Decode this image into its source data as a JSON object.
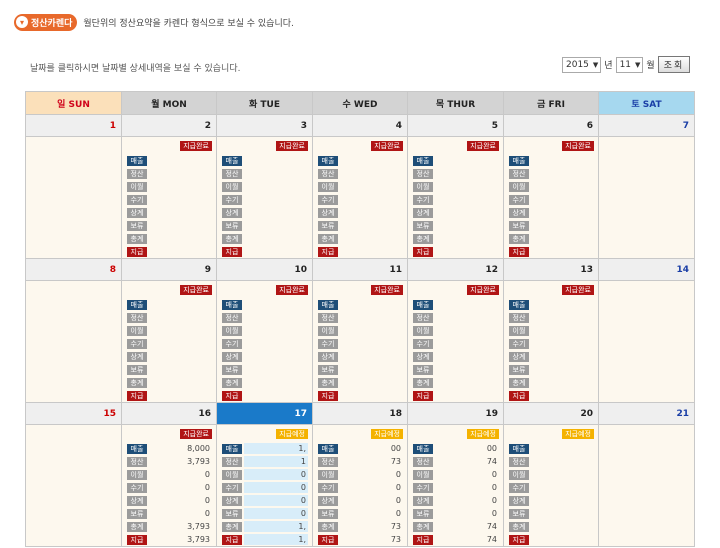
{
  "header": {
    "badge": "정산카렌다",
    "description": "월단위의 정산요약을 카렌다 형식으로 보실 수 있습니다."
  },
  "hint": "날짜를 클릭하시면 날짜별 상세내역을 보실 수 있습니다.",
  "controls": {
    "year": "2015",
    "year_unit": "년",
    "month": "11",
    "month_unit": "월",
    "search_label": "조회"
  },
  "weekdays": [
    "일 SUN",
    "월 MON",
    "화 TUE",
    "수 WED",
    "목 THUR",
    "금 FRI",
    "토 SAT"
  ],
  "labels": [
    "매출",
    "정산",
    "이월",
    "수기",
    "상계",
    "보류",
    "총계",
    "지급"
  ],
  "weeks": [
    {
      "days": [
        "1",
        "2",
        "3",
        "4",
        "5",
        "6",
        "7"
      ],
      "cells": [
        null,
        {
          "status": "지급완료",
          "kind": "done",
          "values": [
            "",
            "",
            "",
            "",
            "",
            "",
            "",
            ""
          ]
        },
        {
          "status": "지급완료",
          "kind": "done",
          "values": [
            "",
            "",
            "",
            "",
            "",
            "",
            "",
            ""
          ]
        },
        {
          "status": "지급완료",
          "kind": "done",
          "values": [
            "",
            "",
            "",
            "",
            "",
            "",
            "",
            ""
          ]
        },
        {
          "status": "지급완료",
          "kind": "done",
          "values": [
            "",
            "",
            "",
            "",
            "",
            "",
            "",
            ""
          ]
        },
        {
          "status": "지급완료",
          "kind": "done",
          "values": [
            "",
            "",
            "",
            "",
            "",
            "",
            "",
            ""
          ]
        },
        null
      ]
    },
    {
      "days": [
        "8",
        "9",
        "10",
        "11",
        "12",
        "13",
        "14"
      ],
      "cells": [
        null,
        {
          "status": "지급완료",
          "kind": "done",
          "values": [
            "",
            "",
            "",
            "",
            "",
            "",
            "",
            ""
          ]
        },
        {
          "status": "지급완료",
          "kind": "done",
          "values": [
            "",
            "",
            "",
            "",
            "",
            "",
            "",
            ""
          ]
        },
        {
          "status": "지급완료",
          "kind": "done",
          "values": [
            "",
            "",
            "",
            "",
            "",
            "",
            "",
            ""
          ]
        },
        {
          "status": "지급완료",
          "kind": "done",
          "values": [
            "",
            "",
            "",
            "",
            "",
            "",
            "",
            ""
          ]
        },
        {
          "status": "지급완료",
          "kind": "done",
          "values": [
            "",
            "",
            "",
            "",
            "",
            "",
            "",
            ""
          ]
        },
        null
      ]
    },
    {
      "days": [
        "15",
        "16",
        "17",
        "18",
        "19",
        "20",
        "21"
      ],
      "cells": [
        null,
        {
          "status": "지급완료",
          "kind": "done",
          "values": [
            "8,000",
            "3,793",
            "0",
            "0",
            "0",
            "0",
            "3,793",
            "3,793"
          ]
        },
        {
          "status": "지급예정",
          "kind": "plan",
          "values": [
            "1,",
            "1",
            "0",
            "0",
            "0",
            "0",
            "1,",
            "1,"
          ]
        },
        {
          "status": "지급예정",
          "kind": "plan",
          "values": [
            "00",
            "73",
            "0",
            "0",
            "0",
            "0",
            "73",
            "73"
          ]
        },
        {
          "status": "지급예정",
          "kind": "plan",
          "values": [
            "00",
            "74",
            "0",
            "0",
            "0",
            "0",
            "74",
            "74"
          ]
        },
        {
          "status": "지급예정",
          "kind": "plan",
          "values": [
            "",
            "",
            "",
            "",
            "",
            "",
            "",
            ""
          ]
        },
        null
      ]
    }
  ],
  "today": "17"
}
